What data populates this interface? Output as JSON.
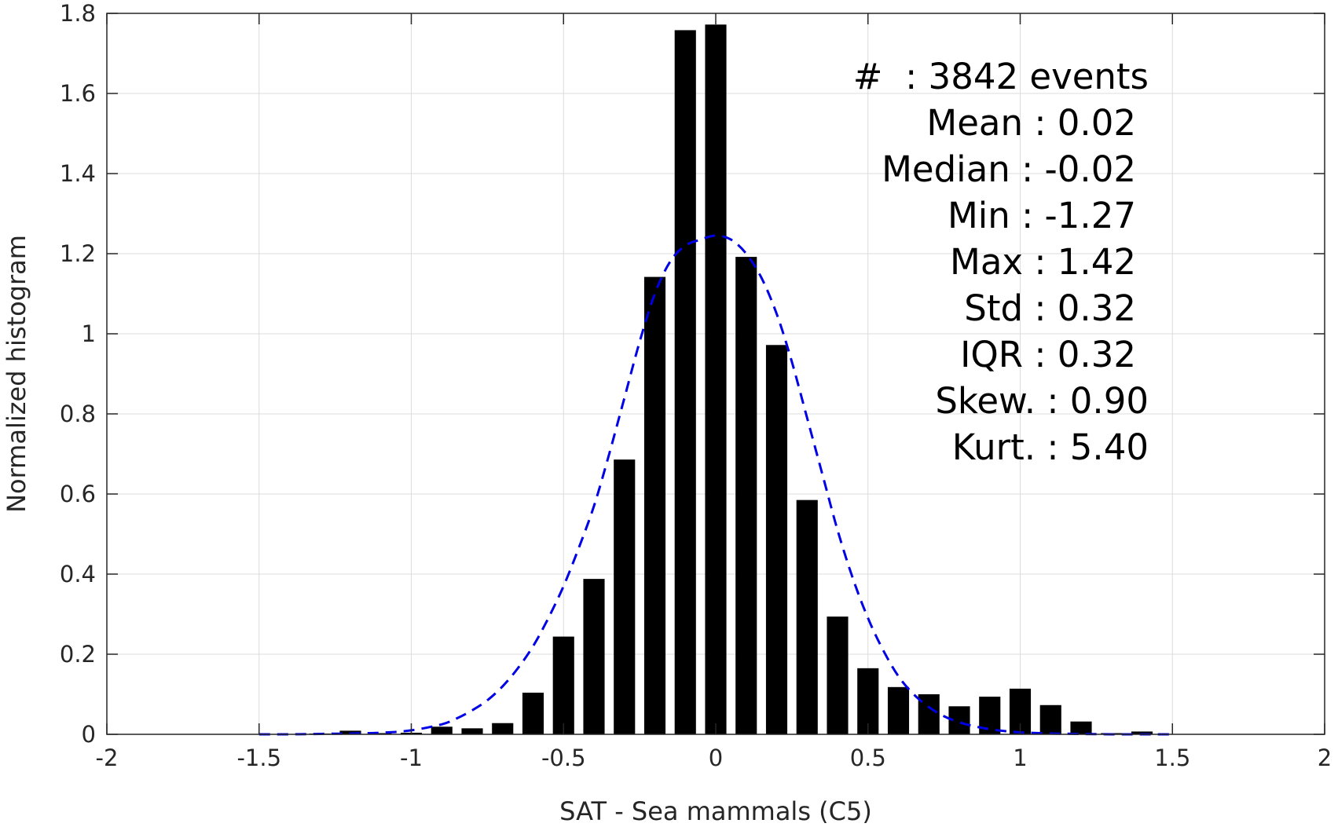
{
  "chart_data": {
    "type": "bar",
    "xlabel": "SAT - Sea mammals (C5)",
    "ylabel": "Normalized histogram",
    "xlim": [
      -2,
      2
    ],
    "ylim": [
      0,
      1.8
    ],
    "xticks": [
      -2,
      -1.5,
      -1,
      -0.5,
      0,
      0.5,
      1,
      1.5,
      2
    ],
    "xtick_labels": [
      "-2",
      "-1.5",
      "-1",
      "-0.5",
      "0",
      "0.5",
      "1",
      "1.5",
      "2"
    ],
    "yticks": [
      0,
      0.2,
      0.4,
      0.6,
      0.8,
      1,
      1.2,
      1.4,
      1.6,
      1.8
    ],
    "ytick_labels": [
      "0",
      "0.2",
      "0.4",
      "0.6",
      "0.8",
      "1",
      "1.2",
      "1.4",
      "1.6",
      "1.8"
    ],
    "grid": true,
    "bar_width": 0.07,
    "bar_color": "#000000",
    "bars": {
      "x": [
        -1.5,
        -1.4,
        -1.3,
        -1.2,
        -1.1,
        -1.0,
        -0.9,
        -0.8,
        -0.7,
        -0.6,
        -0.5,
        -0.4,
        -0.3,
        -0.2,
        -0.1,
        0.0,
        0.1,
        0.2,
        0.3,
        0.4,
        0.5,
        0.6,
        0.7,
        0.8,
        0.9,
        1.0,
        1.1,
        1.2,
        1.3,
        1.4,
        1.5
      ],
      "values": [
        0,
        0,
        0.002,
        0.009,
        0.003,
        0.004,
        0.019,
        0.015,
        0.028,
        0.104,
        0.244,
        0.388,
        0.686,
        1.142,
        1.758,
        1.772,
        1.192,
        0.972,
        0.585,
        0.294,
        0.165,
        0.118,
        0.1,
        0.07,
        0.094,
        0.114,
        0.073,
        0.032,
        0.003,
        0.007,
        0
      ]
    },
    "fit": {
      "style": "dashed",
      "color": "#0000e6",
      "x": [
        -1.5,
        -1.4,
        -1.3,
        -1.2,
        -1.1,
        -1.0,
        -0.9,
        -0.85,
        -0.8,
        -0.75,
        -0.7,
        -0.65,
        -0.6,
        -0.55,
        -0.5,
        -0.45,
        -0.4,
        -0.35,
        -0.3,
        -0.25,
        -0.2,
        -0.15,
        -0.1,
        -0.05,
        0.0,
        0.05,
        0.1,
        0.15,
        0.2,
        0.25,
        0.3,
        0.35,
        0.4,
        0.45,
        0.5,
        0.55,
        0.6,
        0.65,
        0.7,
        0.75,
        0.8,
        0.85,
        0.9,
        0.95,
        1.0,
        1.1,
        1.2,
        1.3,
        1.4,
        1.5
      ],
      "y": [
        0,
        0,
        0.001,
        0.002,
        0.004,
        0.01,
        0.025,
        0.04,
        0.06,
        0.085,
        0.12,
        0.165,
        0.22,
        0.29,
        0.37,
        0.465,
        0.57,
        0.7,
        0.84,
        0.98,
        1.1,
        1.18,
        1.22,
        1.235,
        1.245,
        1.235,
        1.2,
        1.14,
        1.05,
        0.93,
        0.79,
        0.65,
        0.51,
        0.39,
        0.29,
        0.21,
        0.145,
        0.1,
        0.068,
        0.045,
        0.03,
        0.02,
        0.013,
        0.008,
        0.005,
        0.002,
        0.001,
        0,
        0,
        0
      ]
    },
    "annotations": [
      {
        "key": "#",
        "sep": "  :",
        "value": " 3842 events"
      },
      {
        "key": "Mean",
        "sep": " :",
        "value": " 0.02"
      },
      {
        "key": "Median",
        "sep": " :",
        "value": " -0.02"
      },
      {
        "key": "Min",
        "sep": " :",
        "value": " -1.27"
      },
      {
        "key": "Max",
        "sep": " :",
        "value": " 1.42"
      },
      {
        "key": "Std",
        "sep": " :",
        "value": " 0.32"
      },
      {
        "key": "IQR",
        "sep": " :",
        "value": " 0.32"
      },
      {
        "key": "Skew.",
        "sep": " :",
        "value": " 0.90"
      },
      {
        "key": "Kurt.",
        "sep": " :",
        "value": " 5.40"
      }
    ]
  }
}
